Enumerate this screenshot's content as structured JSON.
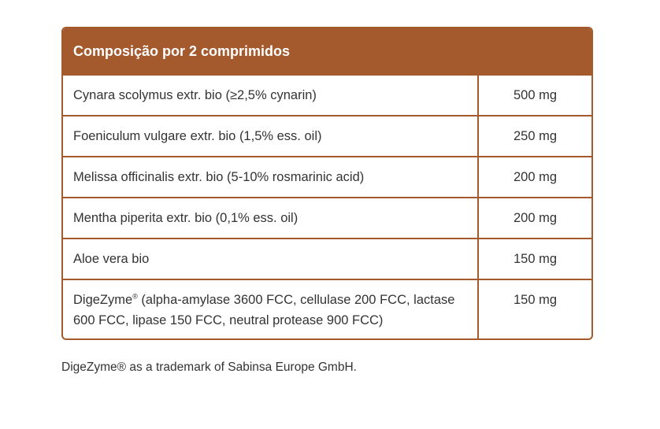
{
  "table": {
    "header": "Composição por 2 comprimidos",
    "rows": [
      {
        "name": "Cynara scolymus extr. bio (≥2,5% cynarin)",
        "qty": "500 mg"
      },
      {
        "name": "Foeniculum vulgare extr. bio (1,5% ess. oil)",
        "qty": "250 mg"
      },
      {
        "name": "Melissa officinalis extr. bio (5-10% rosmarinic acid)",
        "qty": "200 mg"
      },
      {
        "name": "Mentha piperita extr. bio (0,1% ess. oil)",
        "qty": "200 mg"
      },
      {
        "name": "Aloe vera bio",
        "qty": "150 mg"
      },
      {
        "name_main": "DigeZyme",
        "name_sup": "®",
        "name_rest": " (alpha-amylase 3600 FCC, cellulase 200 FCC, lactase 600 FCC, lipase 150 FCC, neutral protease 900 FCC)",
        "qty": "150 mg"
      }
    ]
  },
  "footnote": "DigeZyme® as a trademark of Sabinsa Europe GmbH.",
  "colors": {
    "accent": "#a55a2d",
    "text": "#333333"
  }
}
